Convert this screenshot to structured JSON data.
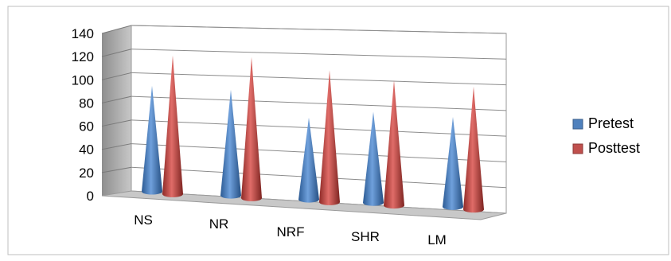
{
  "chart_data": {
    "type": "bar",
    "shape": "cone",
    "three_d": true,
    "title": "",
    "xlabel": "",
    "ylabel": "",
    "categories": [
      "NS",
      "NR",
      "NRF",
      "SHR",
      "LM"
    ],
    "series": [
      {
        "name": "Pretest",
        "values": [
          93,
          93,
          72,
          80,
          79
        ],
        "color": "#4f81bd"
      },
      {
        "name": "Posttest",
        "values": [
          122,
          124,
          116,
          110,
          108
        ],
        "color": "#c0504d"
      }
    ],
    "ylim": [
      0,
      140
    ],
    "yticks": [
      "0",
      "20",
      "40",
      "60",
      "80",
      "100",
      "120",
      "140"
    ],
    "grid": true,
    "legend_position": "right"
  }
}
